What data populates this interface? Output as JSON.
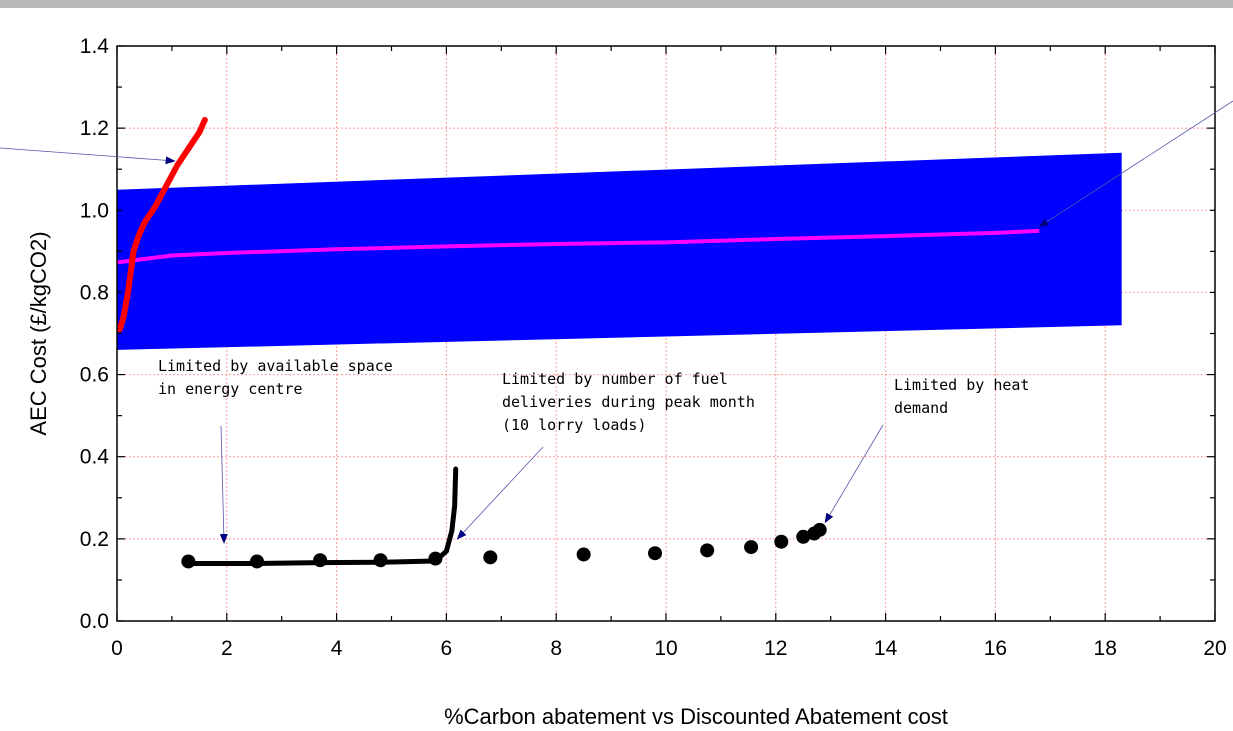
{
  "chart_data": {
    "type": "line",
    "title": "",
    "xlabel": "%Carbon abatement vs Discounted Abatement cost",
    "ylabel": "AEC Cost (£/kgCO2)",
    "xlim": [
      0,
      20
    ],
    "ylim": [
      0,
      1.4
    ],
    "x_ticks": [
      "0",
      "2",
      "4",
      "6",
      "8",
      "10",
      "12",
      "14",
      "16",
      "18",
      "20"
    ],
    "y_ticks": [
      "0.0",
      "0.2",
      "0.4",
      "0.6",
      "0.8",
      "1.0",
      "1.2",
      "1.4"
    ],
    "grid": true,
    "legend": "none",
    "colors": {
      "band": "#0000ff",
      "magenta_line": "#ff00ff",
      "red_line": "#ff0000",
      "black_series": "#000000",
      "grid": "#ff9999",
      "arrow": "#000080"
    },
    "band": {
      "x": [
        0,
        18.3
      ],
      "upper": [
        1.05,
        1.14
      ],
      "lower": [
        0.66,
        0.72
      ]
    },
    "magenta_line": {
      "x": [
        0,
        1,
        2,
        4,
        6,
        8,
        10,
        12,
        14,
        16,
        16.8
      ],
      "y": [
        0.873,
        0.89,
        0.896,
        0.905,
        0.912,
        0.918,
        0.922,
        0.93,
        0.937,
        0.945,
        0.95
      ]
    },
    "red_line": {
      "x": [
        0.05,
        0.12,
        0.2,
        0.25,
        0.3,
        0.4,
        0.5,
        0.7,
        0.9,
        1.1,
        1.3,
        1.5,
        1.6
      ],
      "y": [
        0.71,
        0.74,
        0.8,
        0.85,
        0.9,
        0.94,
        0.97,
        1.01,
        1.06,
        1.11,
        1.15,
        1.19,
        1.22
      ]
    },
    "black_line": {
      "x": [
        1.3,
        2.5,
        3.7,
        4.8,
        5.8,
        6.0,
        6.1,
        6.15,
        6.17
      ],
      "y": [
        0.14,
        0.14,
        0.142,
        0.143,
        0.146,
        0.17,
        0.22,
        0.28,
        0.37
      ]
    },
    "black_points": {
      "x": [
        1.3,
        2.55,
        3.7,
        4.8,
        5.8,
        6.8,
        8.5,
        9.8,
        10.75,
        11.55,
        12.1,
        12.5,
        12.7,
        12.8
      ],
      "y": [
        0.145,
        0.145,
        0.148,
        0.148,
        0.152,
        0.155,
        0.162,
        0.165,
        0.172,
        0.18,
        0.193,
        0.205,
        0.213,
        0.222
      ]
    },
    "annotations": [
      {
        "lines": [
          "Limited by available space",
          "in energy centre"
        ],
        "arrow_to": [
          1.95,
          0.19
        ]
      },
      {
        "lines": [
          "Limited by number of fuel",
          "deliveries during peak month",
          "(10 lorry loads)"
        ],
        "arrow_to": [
          6.2,
          0.2
        ]
      },
      {
        "lines": [
          "Limited by heat",
          "demand"
        ],
        "arrow_to": [
          12.9,
          0.24
        ]
      }
    ],
    "pointer_arrows": [
      {
        "arrow_to": [
          1.05,
          1.12
        ]
      },
      {
        "arrow_to": [
          16.8,
          0.96
        ]
      }
    ]
  }
}
